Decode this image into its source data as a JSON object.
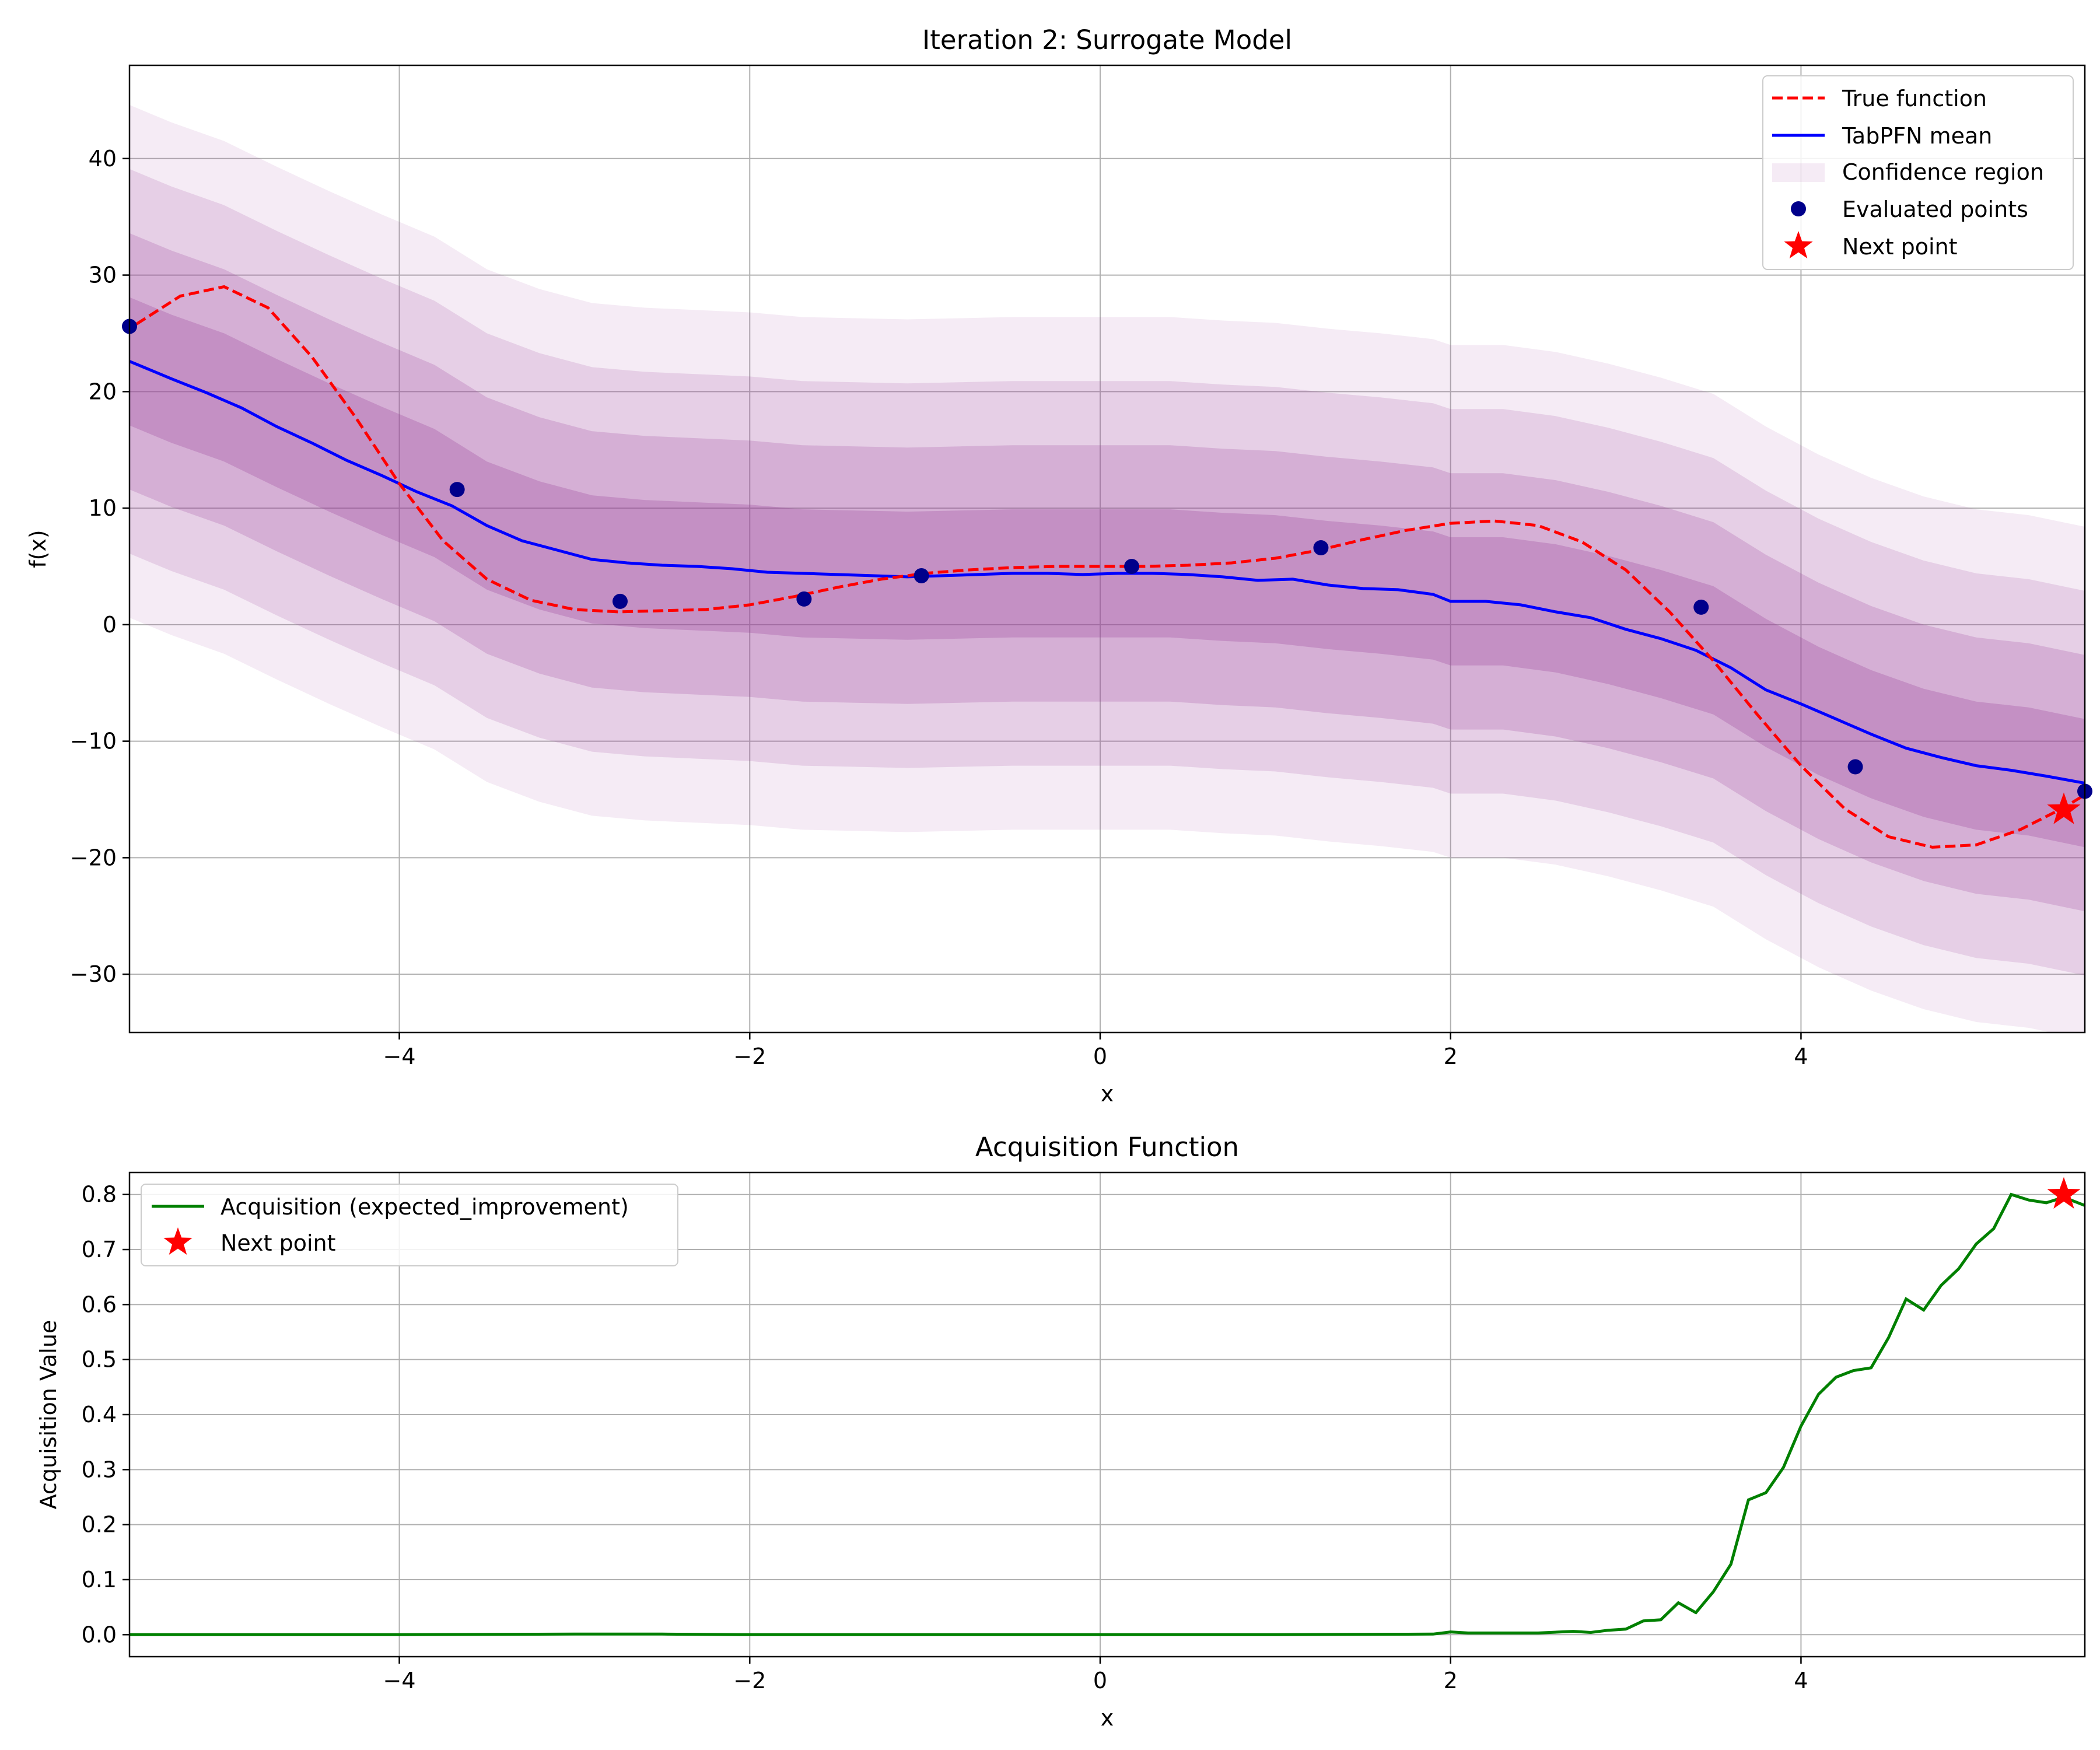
{
  "colors": {
    "true_function": "#ff0000",
    "mean": "#0000ff",
    "confidence": "#9b3f9b",
    "evaluated": "#00008b",
    "next_point": "#ff0000",
    "acquisition": "#008000",
    "grid": "#b0b0b0"
  },
  "chart_data": [
    {
      "type": "line",
      "title": "Iteration 2: Surrogate Model",
      "xlabel": "x",
      "ylabel": "f(x)",
      "xlim": [
        -5.54,
        5.62
      ],
      "ylim": [
        -35,
        48
      ],
      "xticks": [
        -4,
        -2,
        0,
        2,
        4
      ],
      "xtick_labels": [
        "−4",
        "−2",
        "0",
        "2",
        "4"
      ],
      "yticks": [
        -30,
        -20,
        -10,
        0,
        10,
        20,
        30,
        40
      ],
      "ytick_labels": [
        "−30",
        "−20",
        "−10",
        "0",
        "10",
        "20",
        "30",
        "40"
      ],
      "grid": true,
      "legend_position": "upper right",
      "legend": {
        "true_function": "True function",
        "mean": "TabPFN mean",
        "confidence": "Confidence region",
        "evaluated": "Evaluated points",
        "next_point": "Next point"
      },
      "series": [
        {
          "name": "True function",
          "style": "dashed",
          "x": [
            -5.5,
            -5.25,
            -5.0,
            -4.75,
            -4.5,
            -4.25,
            -4.0,
            -3.75,
            -3.5,
            -3.25,
            -3.0,
            -2.75,
            -2.5,
            -2.25,
            -2.0,
            -1.75,
            -1.5,
            -1.25,
            -1.0,
            -0.75,
            -0.5,
            -0.25,
            0.0,
            0.25,
            0.5,
            0.75,
            1.0,
            1.25,
            1.5,
            1.75,
            2.0,
            2.25,
            2.5,
            2.75,
            3.0,
            3.25,
            3.5,
            3.75,
            4.0,
            4.25,
            4.5,
            4.75,
            5.0,
            5.25,
            5.5,
            5.62
          ],
          "y": [
            25.8,
            28.2,
            29.0,
            27.2,
            23.0,
            17.8,
            12.1,
            7.2,
            3.9,
            2.1,
            1.3,
            1.1,
            1.2,
            1.3,
            1.7,
            2.4,
            3.2,
            3.9,
            4.4,
            4.7,
            4.9,
            5.0,
            5.0,
            5.0,
            5.1,
            5.3,
            5.7,
            6.4,
            7.3,
            8.1,
            8.7,
            8.9,
            8.5,
            7.1,
            4.7,
            1.1,
            -3.1,
            -7.7,
            -12.1,
            -15.8,
            -18.2,
            -19.1,
            -18.9,
            -17.6,
            -15.7,
            -14.6
          ]
        },
        {
          "name": "TabPFN mean",
          "x": [
            -5.54,
            -5.3,
            -5.1,
            -4.9,
            -4.7,
            -4.5,
            -4.3,
            -4.1,
            -3.9,
            -3.7,
            -3.5,
            -3.3,
            -3.1,
            -2.9,
            -2.7,
            -2.5,
            -2.3,
            -2.1,
            -1.9,
            -1.7,
            -1.5,
            -1.3,
            -1.1,
            -0.9,
            -0.7,
            -0.5,
            -0.3,
            -0.1,
            0.1,
            0.3,
            0.5,
            0.7,
            0.9,
            1.1,
            1.3,
            1.5,
            1.7,
            1.9,
            2.0,
            2.2,
            2.4,
            2.6,
            2.8,
            3.0,
            3.2,
            3.4,
            3.6,
            3.8,
            4.0,
            4.2,
            4.4,
            4.6,
            4.8,
            5.0,
            5.2,
            5.4,
            5.62
          ],
          "y": [
            22.6,
            21.1,
            19.9,
            18.6,
            17.0,
            15.6,
            14.1,
            12.8,
            11.4,
            10.2,
            8.5,
            7.2,
            6.4,
            5.6,
            5.3,
            5.1,
            5.0,
            4.8,
            4.5,
            4.4,
            4.3,
            4.2,
            4.1,
            4.2,
            4.3,
            4.4,
            4.4,
            4.3,
            4.4,
            4.4,
            4.3,
            4.1,
            3.8,
            3.9,
            3.4,
            3.1,
            3.0,
            2.6,
            2.0,
            2.0,
            1.7,
            1.1,
            0.6,
            -0.4,
            -1.2,
            -2.2,
            -3.7,
            -5.6,
            -6.8,
            -8.1,
            -9.4,
            -10.6,
            -11.4,
            -12.1,
            -12.5,
            -13.0,
            -13.6
          ]
        }
      ],
      "confidence_region": {
        "name": "Confidence region",
        "x": [
          -5.54,
          -5.3,
          -5.0,
          -4.7,
          -4.4,
          -4.1,
          -3.8,
          -3.5,
          -3.2,
          -2.9,
          -2.6,
          -2.3,
          -2.0,
          -1.7,
          -1.4,
          -1.1,
          -0.8,
          -0.5,
          -0.2,
          0.1,
          0.4,
          0.7,
          1.0,
          1.3,
          1.6,
          1.9,
          2.0,
          2.3,
          2.6,
          2.9,
          3.2,
          3.5,
          3.8,
          4.1,
          4.4,
          4.7,
          5.0,
          5.3,
          5.62
        ],
        "mean": [
          22.6,
          21.1,
          19.5,
          17.3,
          15.2,
          13.2,
          11.3,
          8.5,
          6.8,
          5.6,
          5.2,
          5.0,
          4.8,
          4.4,
          4.3,
          4.2,
          4.3,
          4.4,
          4.4,
          4.4,
          4.4,
          4.1,
          3.9,
          3.4,
          3.0,
          2.5,
          2.0,
          2.0,
          1.4,
          0.4,
          -0.8,
          -2.2,
          -5.0,
          -7.4,
          -9.4,
          -11.0,
          -12.1,
          -12.6,
          -13.6
        ],
        "half_widths": [
          5.5,
          11.0,
          16.5,
          22.0
        ]
      },
      "evaluated_points": {
        "name": "Evaluated points",
        "x": [
          -5.54,
          -3.67,
          -2.74,
          -1.69,
          -1.02,
          0.18,
          1.26,
          3.43,
          4.31,
          5.62
        ],
        "y": [
          25.6,
          11.6,
          2.0,
          2.2,
          4.2,
          5.0,
          6.6,
          1.5,
          -12.2,
          -14.3
        ]
      },
      "next_point": {
        "name": "Next point",
        "x": 5.5,
        "y": -15.9
      }
    },
    {
      "type": "line",
      "title": "Acquisition Function",
      "xlabel": "x",
      "ylabel": "Acquisition Value",
      "xlim": [
        -5.54,
        5.62
      ],
      "ylim": [
        -0.04,
        0.84
      ],
      "xticks": [
        -4,
        -2,
        0,
        2,
        4
      ],
      "xtick_labels": [
        "−4",
        "−2",
        "0",
        "2",
        "4"
      ],
      "yticks": [
        0.0,
        0.1,
        0.2,
        0.3,
        0.4,
        0.5,
        0.6,
        0.7,
        0.8
      ],
      "ytick_labels": [
        "0.0",
        "0.1",
        "0.2",
        "0.3",
        "0.4",
        "0.5",
        "0.6",
        "0.7",
        "0.8"
      ],
      "grid": true,
      "legend_position": "upper left",
      "legend": {
        "acquisition": "Acquisition (expected_improvement)",
        "next_point": "Next point"
      },
      "series": [
        {
          "name": "Acquisition (expected_improvement)",
          "x": [
            -5.54,
            -4.0,
            -3.0,
            -2.5,
            -2.0,
            -1.0,
            0.0,
            1.0,
            1.9,
            2.0,
            2.1,
            2.5,
            2.7,
            2.8,
            2.9,
            3.0,
            3.1,
            3.2,
            3.3,
            3.4,
            3.5,
            3.6,
            3.7,
            3.8,
            3.9,
            4.0,
            4.1,
            4.2,
            4.3,
            4.4,
            4.5,
            4.6,
            4.7,
            4.8,
            4.9,
            5.0,
            5.1,
            5.2,
            5.3,
            5.4,
            5.5,
            5.62
          ],
          "y": [
            0.0,
            0.0,
            0.001,
            0.001,
            0.0,
            0.0,
            0.0,
            0.0,
            0.001,
            0.005,
            0.003,
            0.003,
            0.006,
            0.004,
            0.008,
            0.01,
            0.025,
            0.027,
            0.058,
            0.04,
            0.078,
            0.128,
            0.245,
            0.258,
            0.304,
            0.379,
            0.437,
            0.468,
            0.48,
            0.485,
            0.54,
            0.61,
            0.59,
            0.635,
            0.665,
            0.71,
            0.738,
            0.8,
            0.79,
            0.785,
            0.795,
            0.78
          ]
        }
      ],
      "next_point": {
        "name": "Next point",
        "x": 5.5,
        "y": 0.8
      }
    }
  ]
}
